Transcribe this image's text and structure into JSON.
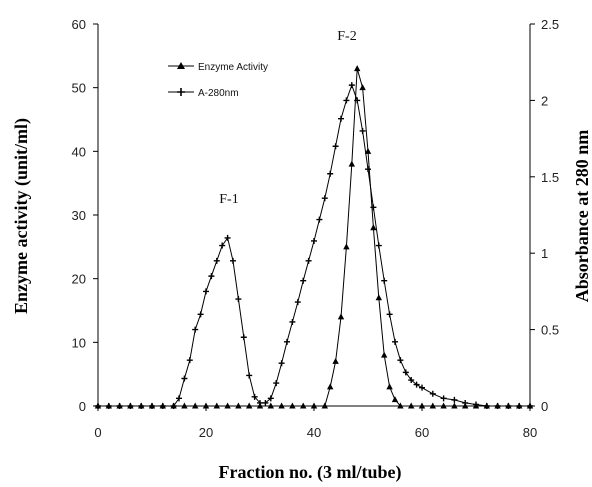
{
  "chart_data": {
    "type": "line",
    "xlabel": "Fraction no. (3 ml/tube)",
    "ylabel_left": "Enzyme activity (unit/ml)",
    "ylabel_right": "Absorbance at 280 nm",
    "xlim": [
      0,
      80
    ],
    "ylim_left": [
      0,
      60
    ],
    "ylim_right": [
      0,
      2.5
    ],
    "x_ticks": [
      "0",
      "20",
      "40",
      "60",
      "80"
    ],
    "y_left_ticks": [
      "0",
      "10",
      "20",
      "30",
      "40",
      "50",
      "60"
    ],
    "y_right_ticks": [
      "0",
      "0.5",
      "1",
      "1.5",
      "2",
      "2.5"
    ],
    "grid": false,
    "legend_position": "top-left",
    "annotations": [
      {
        "text": "F-1",
        "x": 24,
        "y": 32
      },
      {
        "text": "F-2",
        "x": 48,
        "y": 58
      }
    ],
    "series": [
      {
        "name": "Enzyme Activity",
        "axis": "left",
        "marker": "triangle",
        "x": [
          0,
          2,
          4,
          6,
          8,
          10,
          12,
          14,
          16,
          18,
          20,
          22,
          24,
          26,
          28,
          30,
          32,
          34,
          36,
          38,
          40,
          42,
          43,
          44,
          45,
          46,
          47,
          48,
          49,
          50,
          51,
          52,
          53,
          54,
          55,
          56,
          58,
          60,
          62,
          64,
          66,
          68,
          70,
          72,
          74,
          76,
          78,
          80
        ],
        "y": [
          0,
          0,
          0,
          0,
          0,
          0,
          0,
          0,
          0,
          0,
          0,
          0,
          0,
          0,
          0,
          0,
          0,
          0,
          0,
          0,
          0,
          0,
          3,
          7,
          14,
          25,
          38,
          53,
          50,
          40,
          28,
          17,
          8,
          3,
          1,
          0,
          0,
          0,
          0,
          0,
          0,
          0,
          0,
          0,
          0,
          0,
          0,
          0
        ]
      },
      {
        "name": "A-280nm",
        "axis": "right",
        "marker": "plus",
        "x": [
          0,
          2,
          4,
          6,
          8,
          10,
          12,
          14,
          15,
          16,
          17,
          18,
          19,
          20,
          21,
          22,
          23,
          24,
          25,
          26,
          27,
          28,
          29,
          30,
          31,
          32,
          33,
          34,
          35,
          36,
          37,
          38,
          39,
          40,
          41,
          42,
          43,
          44,
          45,
          46,
          47,
          48,
          49,
          50,
          51,
          52,
          53,
          54,
          55,
          56,
          57,
          58,
          59,
          60,
          62,
          64,
          66,
          68,
          70,
          72,
          74,
          76,
          78,
          80
        ],
        "y": [
          0,
          0,
          0,
          0,
          0,
          0,
          0,
          0,
          0.05,
          0.18,
          0.3,
          0.5,
          0.6,
          0.75,
          0.85,
          0.95,
          1.05,
          1.1,
          0.95,
          0.7,
          0.45,
          0.2,
          0.06,
          0.02,
          0.02,
          0.05,
          0.15,
          0.28,
          0.42,
          0.55,
          0.68,
          0.82,
          0.95,
          1.08,
          1.22,
          1.36,
          1.52,
          1.7,
          1.88,
          2.0,
          2.1,
          2.0,
          1.8,
          1.55,
          1.3,
          1.05,
          0.82,
          0.6,
          0.42,
          0.3,
          0.22,
          0.17,
          0.14,
          0.12,
          0.08,
          0.05,
          0.04,
          0.02,
          0.01,
          0,
          0,
          0,
          0,
          0
        ]
      }
    ]
  }
}
